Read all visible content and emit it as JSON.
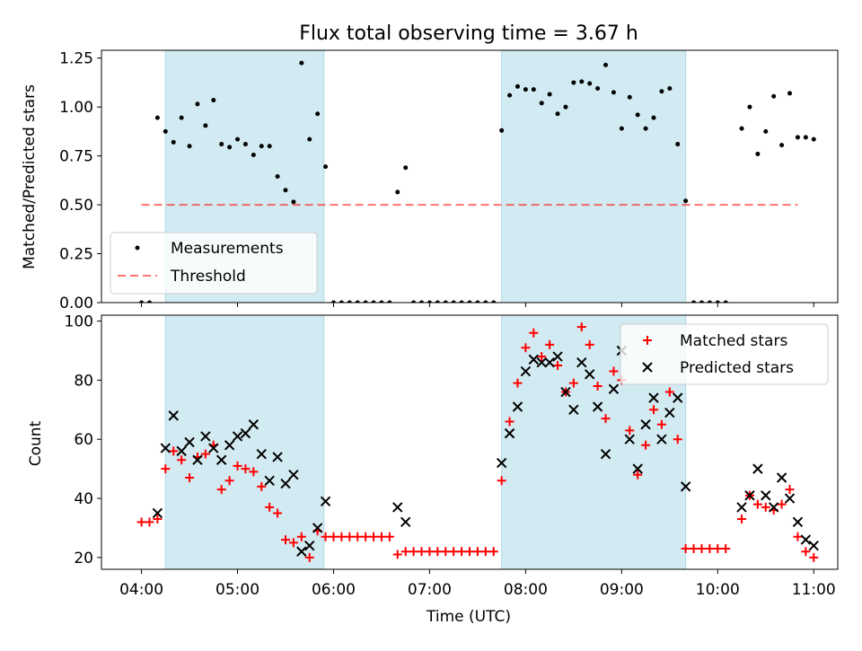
{
  "title": "Flux total observing time = 3.67 h",
  "xlabel": "Time (UTC)",
  "x_ticks": [
    "04:00",
    "05:00",
    "06:00",
    "07:00",
    "08:00",
    "09:00",
    "10:00",
    "11:00"
  ],
  "colors": {
    "span": "#add8e6",
    "measurement": "#000000",
    "threshold": "#ff0000",
    "matched": "#ff0000",
    "predicted": "#000000"
  },
  "chart_data": [
    {
      "type": "scatter",
      "panel": "top",
      "ylabel": "Matched/Predicted stars",
      "xlim": [
        "03:35",
        "11:15"
      ],
      "ylim": [
        0,
        1.29
      ],
      "y_ticks": [
        "0.00",
        "0.25",
        "0.50",
        "0.75",
        "1.00",
        "1.25"
      ],
      "legend_placement": "lower-left",
      "observing_spans": [
        [
          "04:15",
          "05:54"
        ],
        [
          "07:45",
          "09:40"
        ]
      ],
      "threshold": {
        "name": "Threshold",
        "value": 0.5,
        "x": [
          "04:00",
          "10:50"
        ],
        "style": "dashed"
      },
      "series": [
        {
          "name": "Measurements",
          "points": [
            [
              "04:00",
              0
            ],
            [
              "04:05",
              0
            ],
            [
              "04:10",
              0.945
            ],
            [
              "04:15",
              0.875
            ],
            [
              "04:20",
              0.82
            ],
            [
              "04:25",
              0.945
            ],
            [
              "04:30",
              0.8
            ],
            [
              "04:35",
              1.015
            ],
            [
              "04:40",
              0.905
            ],
            [
              "04:45",
              1.035
            ],
            [
              "04:50",
              0.81
            ],
            [
              "04:55",
              0.795
            ],
            [
              "05:00",
              0.835
            ],
            [
              "05:05",
              0.81
            ],
            [
              "05:10",
              0.755
            ],
            [
              "05:15",
              0.8
            ],
            [
              "05:20",
              0.8
            ],
            [
              "05:25",
              0.645
            ],
            [
              "05:30",
              0.575
            ],
            [
              "05:35",
              0.515
            ],
            [
              "05:40",
              1.225
            ],
            [
              "05:45",
              0.835
            ],
            [
              "05:50",
              0.965
            ],
            [
              "05:55",
              0.695
            ],
            [
              "06:00",
              0
            ],
            [
              "06:05",
              0
            ],
            [
              "06:10",
              0
            ],
            [
              "06:15",
              0
            ],
            [
              "06:20",
              0
            ],
            [
              "06:25",
              0
            ],
            [
              "06:30",
              0
            ],
            [
              "06:35",
              0
            ],
            [
              "06:40",
              0.565
            ],
            [
              "06:45",
              0.69
            ],
            [
              "06:50",
              0
            ],
            [
              "06:55",
              0
            ],
            [
              "07:00",
              0
            ],
            [
              "07:05",
              0
            ],
            [
              "07:10",
              0
            ],
            [
              "07:15",
              0
            ],
            [
              "07:20",
              0
            ],
            [
              "07:25",
              0
            ],
            [
              "07:30",
              0
            ],
            [
              "07:35",
              0
            ],
            [
              "07:40",
              0
            ],
            [
              "07:45",
              0.88
            ],
            [
              "07:50",
              1.06
            ],
            [
              "07:55",
              1.105
            ],
            [
              "08:00",
              1.09
            ],
            [
              "08:05",
              1.09
            ],
            [
              "08:10",
              1.02
            ],
            [
              "08:15",
              1.065
            ],
            [
              "08:20",
              0.965
            ],
            [
              "08:25",
              1.0
            ],
            [
              "08:30",
              1.125
            ],
            [
              "08:35",
              1.13
            ],
            [
              "08:40",
              1.12
            ],
            [
              "08:45",
              1.095
            ],
            [
              "08:50",
              1.215
            ],
            [
              "08:55",
              1.075
            ],
            [
              "09:00",
              0.89
            ],
            [
              "09:05",
              1.05
            ],
            [
              "09:10",
              0.96
            ],
            [
              "09:15",
              0.89
            ],
            [
              "09:20",
              0.945
            ],
            [
              "09:25",
              1.08
            ],
            [
              "09:30",
              1.095
            ],
            [
              "09:35",
              0.81
            ],
            [
              "09:40",
              0.52
            ],
            [
              "09:45",
              0
            ],
            [
              "09:50",
              0
            ],
            [
              "09:55",
              0
            ],
            [
              "10:00",
              0
            ],
            [
              "10:05",
              0
            ],
            [
              "10:15",
              0.89
            ],
            [
              "10:20",
              1.0
            ],
            [
              "10:25",
              0.76
            ],
            [
              "10:30",
              0.875
            ],
            [
              "10:35",
              1.055
            ],
            [
              "10:40",
              0.805
            ],
            [
              "10:45",
              1.07
            ],
            [
              "10:50",
              0.845
            ],
            [
              "10:55",
              0.845
            ],
            [
              "11:00",
              0.835
            ]
          ]
        }
      ]
    },
    {
      "type": "scatter",
      "panel": "bottom",
      "ylabel": "Count",
      "xlim": [
        "03:35",
        "11:15"
      ],
      "ylim": [
        16,
        102
      ],
      "y_ticks": [
        "20",
        "40",
        "60",
        "80",
        "100"
      ],
      "legend_placement": "top-right",
      "observing_spans": [
        [
          "04:15",
          "05:54"
        ],
        [
          "07:45",
          "09:40"
        ]
      ],
      "series": [
        {
          "name": "Matched stars",
          "marker": "plus",
          "points": [
            [
              "04:00",
              32
            ],
            [
              "04:05",
              32
            ],
            [
              "04:10",
              33
            ],
            [
              "04:15",
              50
            ],
            [
              "04:20",
              56
            ],
            [
              "04:25",
              53
            ],
            [
              "04:30",
              47
            ],
            [
              "04:35",
              54
            ],
            [
              "04:40",
              55
            ],
            [
              "04:45",
              58
            ],
            [
              "04:50",
              43
            ],
            [
              "04:55",
              46
            ],
            [
              "05:00",
              51
            ],
            [
              "05:05",
              50
            ],
            [
              "05:10",
              49
            ],
            [
              "05:15",
              44
            ],
            [
              "05:20",
              37
            ],
            [
              "05:25",
              35
            ],
            [
              "05:30",
              26
            ],
            [
              "05:35",
              25
            ],
            [
              "05:40",
              27
            ],
            [
              "05:45",
              20
            ],
            [
              "05:50",
              29
            ],
            [
              "05:55",
              27
            ],
            [
              "06:00",
              27
            ],
            [
              "06:05",
              27
            ],
            [
              "06:10",
              27
            ],
            [
              "06:15",
              27
            ],
            [
              "06:20",
              27
            ],
            [
              "06:25",
              27
            ],
            [
              "06:30",
              27
            ],
            [
              "06:35",
              27
            ],
            [
              "06:40",
              21
            ],
            [
              "06:45",
              22
            ],
            [
              "06:50",
              22
            ],
            [
              "06:55",
              22
            ],
            [
              "07:00",
              22
            ],
            [
              "07:05",
              22
            ],
            [
              "07:10",
              22
            ],
            [
              "07:15",
              22
            ],
            [
              "07:20",
              22
            ],
            [
              "07:25",
              22
            ],
            [
              "07:30",
              22
            ],
            [
              "07:35",
              22
            ],
            [
              "07:40",
              22
            ],
            [
              "07:45",
              46
            ],
            [
              "07:50",
              66
            ],
            [
              "07:55",
              79
            ],
            [
              "08:00",
              91
            ],
            [
              "08:05",
              96
            ],
            [
              "08:10",
              88
            ],
            [
              "08:15",
              92
            ],
            [
              "08:20",
              85
            ],
            [
              "08:25",
              76
            ],
            [
              "08:30",
              79
            ],
            [
              "08:35",
              98
            ],
            [
              "08:40",
              92
            ],
            [
              "08:45",
              78
            ],
            [
              "08:50",
              67
            ],
            [
              "08:55",
              83
            ],
            [
              "09:00",
              80
            ],
            [
              "09:05",
              63
            ],
            [
              "09:10",
              48
            ],
            [
              "09:15",
              58
            ],
            [
              "09:20",
              70
            ],
            [
              "09:25",
              65
            ],
            [
              "09:30",
              76
            ],
            [
              "09:35",
              60
            ],
            [
              "09:40",
              23
            ],
            [
              "09:45",
              23
            ],
            [
              "09:50",
              23
            ],
            [
              "09:55",
              23
            ],
            [
              "10:00",
              23
            ],
            [
              "10:05",
              23
            ],
            [
              "10:15",
              33
            ],
            [
              "10:20",
              41
            ],
            [
              "10:25",
              38
            ],
            [
              "10:30",
              37
            ],
            [
              "10:35",
              36
            ],
            [
              "10:40",
              38
            ],
            [
              "10:45",
              43
            ],
            [
              "10:50",
              27
            ],
            [
              "10:55",
              22
            ],
            [
              "11:00",
              20
            ]
          ]
        },
        {
          "name": "Predicted stars",
          "marker": "x",
          "points": [
            [
              "04:10",
              35
            ],
            [
              "04:15",
              57
            ],
            [
              "04:20",
              68
            ],
            [
              "04:25",
              56
            ],
            [
              "04:30",
              59
            ],
            [
              "04:35",
              53
            ],
            [
              "04:40",
              61
            ],
            [
              "04:45",
              57
            ],
            [
              "04:50",
              53
            ],
            [
              "04:55",
              58
            ],
            [
              "05:00",
              61
            ],
            [
              "05:05",
              62
            ],
            [
              "05:10",
              65
            ],
            [
              "05:15",
              55
            ],
            [
              "05:20",
              46
            ],
            [
              "05:25",
              54
            ],
            [
              "05:30",
              45
            ],
            [
              "05:35",
              48
            ],
            [
              "05:40",
              22
            ],
            [
              "05:45",
              24
            ],
            [
              "05:50",
              30
            ],
            [
              "05:55",
              39
            ],
            [
              "06:40",
              37
            ],
            [
              "06:45",
              32
            ],
            [
              "07:45",
              52
            ],
            [
              "07:50",
              62
            ],
            [
              "07:55",
              71
            ],
            [
              "08:00",
              83
            ],
            [
              "08:05",
              87
            ],
            [
              "08:10",
              86
            ],
            [
              "08:15",
              86
            ],
            [
              "08:20",
              88
            ],
            [
              "08:25",
              76
            ],
            [
              "08:30",
              70
            ],
            [
              "08:35",
              86
            ],
            [
              "08:40",
              82
            ],
            [
              "08:45",
              71
            ],
            [
              "08:50",
              55
            ],
            [
              "08:55",
              77
            ],
            [
              "09:00",
              90
            ],
            [
              "09:05",
              60
            ],
            [
              "09:10",
              50
            ],
            [
              "09:15",
              65
            ],
            [
              "09:20",
              74
            ],
            [
              "09:25",
              60
            ],
            [
              "09:30",
              69
            ],
            [
              "09:35",
              74
            ],
            [
              "09:40",
              44
            ],
            [
              "10:15",
              37
            ],
            [
              "10:20",
              41
            ],
            [
              "10:25",
              50
            ],
            [
              "10:30",
              41
            ],
            [
              "10:35",
              37
            ],
            [
              "10:40",
              47
            ],
            [
              "10:45",
              40
            ],
            [
              "10:50",
              32
            ],
            [
              "10:55",
              26
            ],
            [
              "11:00",
              24
            ]
          ]
        }
      ]
    }
  ]
}
